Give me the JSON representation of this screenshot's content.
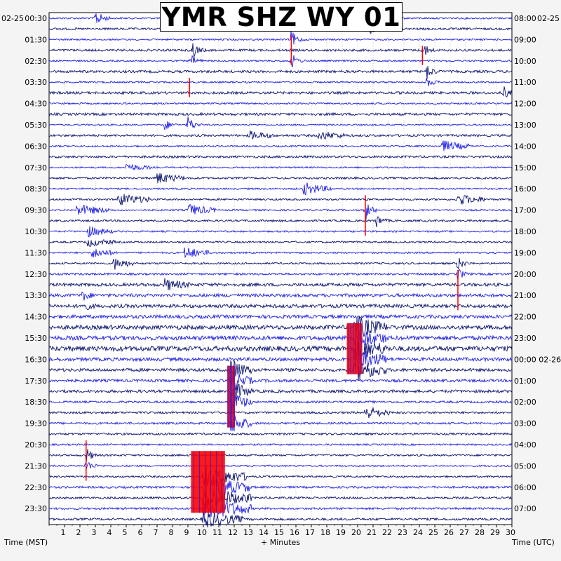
{
  "title": "YMR SHZ WY 01",
  "left_date": "02-25",
  "right_date": "02-25",
  "left_axis_title": "Time (MST)",
  "right_axis_title": "Time (UTC)",
  "x_axis_title": "+ Minutes",
  "colors": {
    "background": "#ffffff",
    "trace_light": "#1f1fe8",
    "trace_dark": "#0c1470",
    "clipped": "#ff0000",
    "grid": "#b9b9b9"
  },
  "chart_data": {
    "type": "helicorder",
    "station": "YMR",
    "channel": "SHZ",
    "network": "WY",
    "location": "01",
    "x": {
      "label": "+ Minutes",
      "range": [
        0,
        30
      ],
      "ticks": [
        "1",
        "2",
        "3",
        "4",
        "5",
        "6",
        "7",
        "8",
        "9",
        "10",
        "11",
        "12",
        "13",
        "14",
        "15",
        "16",
        "17",
        "18",
        "19",
        "20",
        "21",
        "22",
        "23",
        "24",
        "25",
        "26",
        "27",
        "28",
        "29",
        "30"
      ]
    },
    "rows_per_hour": 2,
    "row_count": 48,
    "left_labels": [
      "00:30",
      "01:30",
      "02:30",
      "03:30",
      "04:30",
      "05:30",
      "06:30",
      "07:30",
      "08:30",
      "09:30",
      "10:30",
      "11:30",
      "12:30",
      "13:30",
      "14:30",
      "15:30",
      "16:30",
      "17:30",
      "18:30",
      "19:30",
      "20:30",
      "21:30",
      "22:30",
      "23:30"
    ],
    "right_labels": [
      "08:00",
      "09:00",
      "10:00",
      "11:00",
      "12:00",
      "13:00",
      "14:00",
      "15:00",
      "16:00",
      "17:00",
      "18:00",
      "19:00",
      "20:00",
      "21:00",
      "22:00",
      "23:00",
      "00:00 02-26",
      "01:00",
      "02:00",
      "03:00",
      "04:00",
      "05:00",
      "06:00",
      "07:00"
    ],
    "row_noise": [
      1.2,
      1.5,
      1.2,
      1.6,
      1.2,
      1.8,
      1.2,
      1.8,
      1.2,
      1.8,
      1.1,
      1.6,
      1.2,
      1.6,
      1.1,
      1.4,
      1.2,
      1.3,
      1.2,
      1.4,
      1.2,
      1.3,
      1.2,
      1.3,
      1.5,
      2.2,
      2.3,
      2.5,
      2.5,
      3,
      3,
      3.5,
      2.5,
      2.2,
      2,
      2,
      1.5,
      1.5,
      1.5,
      1.5,
      1.2,
      1.3,
      1.2,
      1.3,
      1.5,
      1.5,
      1.5,
      1.6
    ],
    "events": [
      {
        "row": 0,
        "minute": 3.0,
        "amp": 12,
        "dur": 0.4
      },
      {
        "row": 0,
        "minute": 20.5,
        "amp": 10,
        "dur": 0.3
      },
      {
        "row": 1,
        "minute": 20.7,
        "amp": 10,
        "dur": 0.3
      },
      {
        "row": 2,
        "minute": 15.7,
        "amp": 14,
        "dur": 0.3
      },
      {
        "row": 3,
        "minute": 9.3,
        "amp": 12,
        "dur": 0.3
      },
      {
        "row": 3,
        "minute": 24.2,
        "amp": 12,
        "dur": 0.3
      },
      {
        "row": 4,
        "minute": 9.2,
        "amp": 9,
        "dur": 0.3
      },
      {
        "row": 4,
        "minute": 15.7,
        "amp": 12,
        "dur": 0.3
      },
      {
        "row": 5,
        "minute": 24.5,
        "amp": 10,
        "dur": 0.3
      },
      {
        "row": 6,
        "minute": 24.5,
        "amp": 8,
        "dur": 0.3
      },
      {
        "row": 7,
        "minute": 29.5,
        "amp": 8,
        "dur": 0.3
      },
      {
        "row": 10,
        "minute": 7.5,
        "amp": 8,
        "dur": 0.3
      },
      {
        "row": 10,
        "minute": 9.0,
        "amp": 14,
        "dur": 0.3
      },
      {
        "row": 11,
        "minute": 13.0,
        "amp": 6,
        "dur": 1.0
      },
      {
        "row": 11,
        "minute": 17.5,
        "amp": 6,
        "dur": 1.2
      },
      {
        "row": 12,
        "minute": 25.5,
        "amp": 8,
        "dur": 1.2
      },
      {
        "row": 14,
        "minute": 5.0,
        "amp": 6,
        "dur": 1.0
      },
      {
        "row": 15,
        "minute": 7.0,
        "amp": 8,
        "dur": 1.2
      },
      {
        "row": 16,
        "minute": 16.5,
        "amp": 9,
        "dur": 1.2
      },
      {
        "row": 17,
        "minute": 4.5,
        "amp": 9,
        "dur": 1.5
      },
      {
        "row": 17,
        "minute": 26.5,
        "amp": 8,
        "dur": 1.2
      },
      {
        "row": 18,
        "minute": 1.8,
        "amp": 8,
        "dur": 1.5
      },
      {
        "row": 18,
        "minute": 9.0,
        "amp": 9,
        "dur": 1.2
      },
      {
        "row": 18,
        "minute": 20.5,
        "amp": 16,
        "dur": 0.3
      },
      {
        "row": 19,
        "minute": 21.2,
        "amp": 10,
        "dur": 0.3
      },
      {
        "row": 20,
        "minute": 2.5,
        "amp": 8,
        "dur": 1.0
      },
      {
        "row": 21,
        "minute": 2.5,
        "amp": 6,
        "dur": 1.2
      },
      {
        "row": 22,
        "minute": 2.8,
        "amp": 7,
        "dur": 1.0
      },
      {
        "row": 22,
        "minute": 8.8,
        "amp": 9,
        "dur": 1.0
      },
      {
        "row": 23,
        "minute": 4.2,
        "amp": 9,
        "dur": 0.8
      },
      {
        "row": 23,
        "minute": 26.5,
        "amp": 10,
        "dur": 0.3
      },
      {
        "row": 24,
        "minute": 26.5,
        "amp": 8,
        "dur": 0.3
      },
      {
        "row": 25,
        "minute": 7.5,
        "amp": 8,
        "dur": 1.0
      },
      {
        "row": 26,
        "minute": 2.2,
        "amp": 8,
        "dur": 0.3
      },
      {
        "row": 27,
        "minute": 2.2,
        "amp": 8,
        "dur": 0.3
      },
      {
        "row": 29,
        "minute": 19.8,
        "amp": 16,
        "dur": 1.5
      },
      {
        "row": 30,
        "minute": 19.8,
        "amp": 16,
        "dur": 1.5
      },
      {
        "row": 31,
        "minute": 19.8,
        "amp": 16,
        "dur": 1.5
      },
      {
        "row": 32,
        "minute": 19.8,
        "amp": 16,
        "dur": 1.5
      },
      {
        "row": 33,
        "minute": 19.8,
        "amp": 16,
        "dur": 1.5
      },
      {
        "row": 33,
        "minute": 11.8,
        "amp": 16,
        "dur": 0.8
      },
      {
        "row": 34,
        "minute": 11.8,
        "amp": 16,
        "dur": 0.8
      },
      {
        "row": 35,
        "minute": 11.8,
        "amp": 16,
        "dur": 0.8
      },
      {
        "row": 36,
        "minute": 11.8,
        "amp": 16,
        "dur": 0.8
      },
      {
        "row": 37,
        "minute": 20.5,
        "amp": 10,
        "dur": 1.0
      },
      {
        "row": 38,
        "minute": 11.8,
        "amp": 16,
        "dur": 0.8
      },
      {
        "row": 41,
        "minute": 2.4,
        "amp": 12,
        "dur": 0.3
      },
      {
        "row": 42,
        "minute": 2.4,
        "amp": 10,
        "dur": 0.3
      },
      {
        "row": 43,
        "minute": 10.0,
        "amp": 16,
        "dur": 2.2
      },
      {
        "row": 44,
        "minute": 10.0,
        "amp": 16,
        "dur": 2.5
      },
      {
        "row": 45,
        "minute": 10.0,
        "amp": 16,
        "dur": 2.5
      },
      {
        "row": 46,
        "minute": 10.0,
        "amp": 16,
        "dur": 2.5
      },
      {
        "row": 47,
        "minute": 10.0,
        "amp": 12,
        "dur": 2.0
      }
    ],
    "clipped_events": [
      {
        "rows": [
          2,
          4
        ],
        "minute": 15.7
      },
      {
        "rows": [
          3,
          4
        ],
        "minute": 24.2
      },
      {
        "rows": [
          6,
          7
        ],
        "minute": 9.1
      },
      {
        "rows": [
          17,
          20
        ],
        "minute": 20.5
      },
      {
        "rows": [
          29,
          33
        ],
        "minute": 19.8,
        "width_min": 1.0
      },
      {
        "rows": [
          33,
          38
        ],
        "minute": 11.8,
        "width_min": 0.5
      },
      {
        "rows": [
          40,
          43
        ],
        "minute": 2.4
      },
      {
        "rows": [
          41,
          46
        ],
        "minute": 10.3,
        "width_min": 2.2
      },
      {
        "rows": [
          24,
          27
        ],
        "minute": 26.5
      }
    ]
  }
}
